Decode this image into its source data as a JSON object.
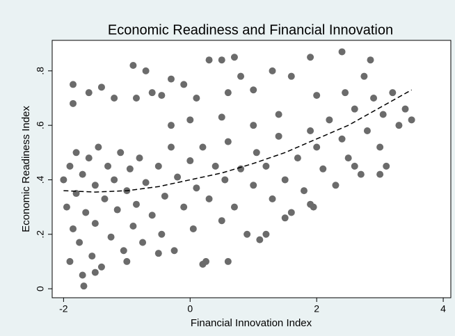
{
  "chart_data": {
    "type": "scatter",
    "title": "Economic Readiness and Financial Innovation",
    "xlabel": "Financial Innovation Index",
    "ylabel": "Economic Readiness Index",
    "xlim": [
      -2.18,
      4.12
    ],
    "ylim": [
      -0.033,
      0.912
    ],
    "xticks": [
      -2,
      0,
      2,
      4
    ],
    "yticks": [
      0,
      {
        "value": 0.2,
        "label": ".2"
      },
      {
        "value": 0.4,
        "label": ".4"
      },
      {
        "value": 0.6,
        "label": ".6"
      },
      {
        "value": 0.8,
        "label": ".8"
      }
    ],
    "color": "#6b6b6b",
    "x": [
      -2.0,
      -1.95,
      -1.9,
      -1.85,
      -1.8,
      -1.8,
      -1.75,
      -1.7,
      -1.7,
      -1.68,
      -1.65,
      -1.6,
      -1.55,
      -1.5,
      -1.5,
      -1.45,
      -1.4,
      -1.35,
      -1.3,
      -1.25,
      -1.2,
      -1.15,
      -1.1,
      -1.05,
      -1.0,
      -0.95,
      -0.9,
      -0.85,
      -0.8,
      -0.75,
      -0.7,
      -0.6,
      -0.5,
      -0.45,
      -0.4,
      -0.3,
      -0.25,
      -0.2,
      -0.1,
      0.0,
      0.05,
      0.1,
      0.2,
      0.25,
      0.3,
      0.4,
      0.5,
      0.55,
      0.6,
      0.7,
      0.8,
      0.9,
      1.0,
      1.05,
      1.1,
      1.2,
      1.3,
      1.4,
      1.5,
      1.6,
      1.7,
      1.8,
      1.9,
      1.95,
      2.0,
      2.1,
      2.2,
      2.3,
      2.4,
      2.45,
      2.5,
      2.6,
      2.7,
      2.75,
      2.8,
      2.9,
      3.0,
      3.05,
      3.1,
      3.2,
      3.3,
      3.4,
      3.5,
      2.4,
      2.85,
      -1.85,
      -1.85,
      -1.6,
      -1.4,
      -1.2,
      -0.9,
      -0.85,
      -0.7,
      -0.6,
      -0.45,
      -0.3,
      -0.1,
      0.1,
      0.3,
      0.5,
      0.7,
      0.8,
      0.6,
      1.0,
      1.3,
      1.6,
      1.9,
      2.0,
      -1.9,
      -1.5,
      -1.0,
      -0.5,
      0.2,
      0.6,
      1.2,
      1.5,
      1.9,
      2.6,
      3.0,
      -0.3,
      0.0,
      0.5,
      1.0,
      1.4
    ],
    "y": [
      0.4,
      0.3,
      0.45,
      0.22,
      0.5,
      0.35,
      0.17,
      0.42,
      0.05,
      0.01,
      0.28,
      0.48,
      0.12,
      0.38,
      0.24,
      0.52,
      0.08,
      0.33,
      0.45,
      0.19,
      0.4,
      0.29,
      0.5,
      0.14,
      0.36,
      0.44,
      0.23,
      0.31,
      0.48,
      0.17,
      0.39,
      0.27,
      0.45,
      0.2,
      0.34,
      0.52,
      0.14,
      0.41,
      0.3,
      0.47,
      0.22,
      0.37,
      0.52,
      0.1,
      0.33,
      0.45,
      0.25,
      0.4,
      0.54,
      0.3,
      0.44,
      0.2,
      0.38,
      0.5,
      0.18,
      0.45,
      0.33,
      0.56,
      0.4,
      0.28,
      0.48,
      0.36,
      0.58,
      0.3,
      0.52,
      0.44,
      0.62,
      0.38,
      0.55,
      0.72,
      0.48,
      0.66,
      0.42,
      0.78,
      0.58,
      0.7,
      0.52,
      0.64,
      0.45,
      0.72,
      0.6,
      0.66,
      0.62,
      0.87,
      0.84,
      0.75,
      0.68,
      0.72,
      0.74,
      0.7,
      0.82,
      0.7,
      0.8,
      0.72,
      0.71,
      0.77,
      0.75,
      0.7,
      0.84,
      0.84,
      0.85,
      0.78,
      0.72,
      0.73,
      0.8,
      0.78,
      0.85,
      0.71,
      0.1,
      0.06,
      0.1,
      0.13,
      0.09,
      0.1,
      0.2,
      0.26,
      0.31,
      0.45,
      0.42,
      0.6,
      0.62,
      0.63,
      0.6,
      0.64
    ],
    "fit": {
      "color": "#000000",
      "x": [
        -2.0,
        -1.5,
        -1.0,
        -0.5,
        0.0,
        0.5,
        1.0,
        1.5,
        2.0,
        2.5,
        3.0,
        3.5
      ],
      "y": [
        0.36,
        0.355,
        0.36,
        0.375,
        0.4,
        0.425,
        0.46,
        0.5,
        0.55,
        0.6,
        0.665,
        0.73
      ]
    }
  }
}
